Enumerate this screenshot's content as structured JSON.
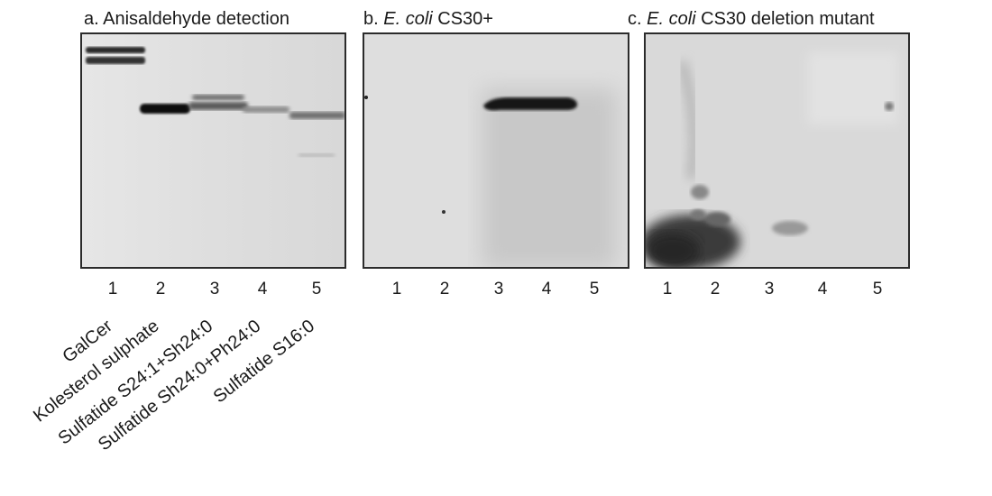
{
  "panels": [
    {
      "prefix": "a. ",
      "italic": "",
      "suffix": "Anisaldehyde detection"
    },
    {
      "prefix": "b. ",
      "italic": "E. coli",
      "suffix": " CS30+"
    },
    {
      "prefix": "c. ",
      "italic": "E. coli",
      "suffix": " CS30 deletion mutant"
    }
  ],
  "lanes": [
    "1",
    "2",
    "3",
    "4",
    "5"
  ],
  "compounds": [
    "GalCer",
    "Kolesterol sulphate",
    "Sulfatide S24:1+Sh24:0",
    "Sulfatide Sh24:0+Ph24:0",
    "Sulfatide S16:0"
  ],
  "colors": {
    "gel_a_bg": "#e4e4e4",
    "gel_b_bg": "#dedede",
    "gel_c_bg": "#dadada",
    "band": "#1e1e1e"
  }
}
